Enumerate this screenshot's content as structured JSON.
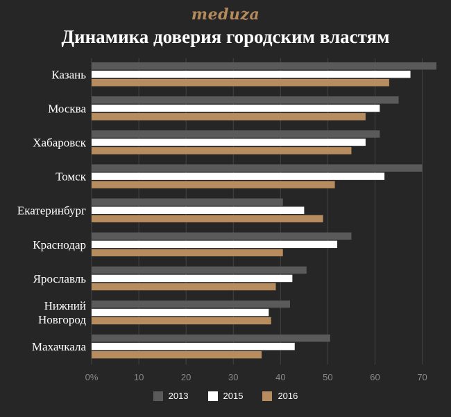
{
  "brand": "meduza",
  "chart_data": {
    "type": "bar",
    "orientation": "horizontal",
    "title": "Динамика доверия городским властям",
    "categories": [
      "Казань",
      "Москва",
      "Хабаровск",
      "Томск",
      "Екатеринбург",
      "Краснодар",
      "Ярославль",
      "Нижний Новгород",
      "Махачкала"
    ],
    "series": [
      {
        "name": "2013",
        "color": "#5a5a5a",
        "values": [
          73,
          65,
          61,
          70,
          40.5,
          55,
          45.5,
          42,
          50.5
        ]
      },
      {
        "name": "2015",
        "color": "#ffffff",
        "values": [
          67.5,
          61,
          58,
          62,
          45,
          52,
          42.5,
          37.5,
          43
        ]
      },
      {
        "name": "2016",
        "color": "#b78c5e",
        "values": [
          63,
          58,
          55,
          51.5,
          49,
          40.5,
          39,
          38,
          36
        ]
      }
    ],
    "xlim": [
      0,
      73
    ],
    "x_ticks": [
      0,
      10,
      20,
      30,
      40,
      50,
      60,
      70
    ],
    "x_tick_labels": [
      "0%",
      "10",
      "20",
      "30",
      "40",
      "50",
      "60",
      "70"
    ],
    "grid": true,
    "legend_position": "bottom"
  }
}
